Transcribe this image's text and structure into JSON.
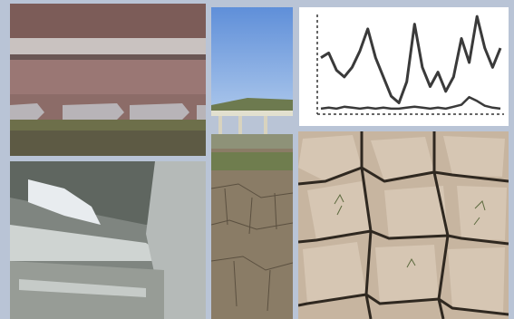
{
  "collage": {
    "background": "#b9c4d6",
    "panels": [
      {
        "subject": "weir-spillway-photo"
      },
      {
        "subject": "rushing-water-channel-photo"
      },
      {
        "subject": "dry-reservoir-bridge-photo"
      },
      {
        "subject": "hydrograph-chart"
      },
      {
        "subject": "cracked-dry-earth-photo"
      }
    ]
  },
  "chart_data": {
    "type": "line",
    "title": "",
    "xlabel": "",
    "ylabel": "",
    "grid": false,
    "series": [
      {
        "values": [
          0.55,
          0.6,
          0.42,
          0.35,
          0.45,
          0.62,
          0.85,
          0.55,
          0.35,
          0.15,
          0.08,
          0.3,
          0.9,
          0.45,
          0.25,
          0.4,
          0.2,
          0.35,
          0.75,
          0.5,
          0.98,
          0.65,
          0.45,
          0.65
        ]
      },
      {
        "values": [
          0.02,
          0.03,
          0.02,
          0.04,
          0.03,
          0.02,
          0.03,
          0.02,
          0.03,
          0.02,
          0.02,
          0.03,
          0.04,
          0.03,
          0.02,
          0.03,
          0.02,
          0.04,
          0.06,
          0.14,
          0.1,
          0.05,
          0.03,
          0.02
        ]
      }
    ]
  }
}
